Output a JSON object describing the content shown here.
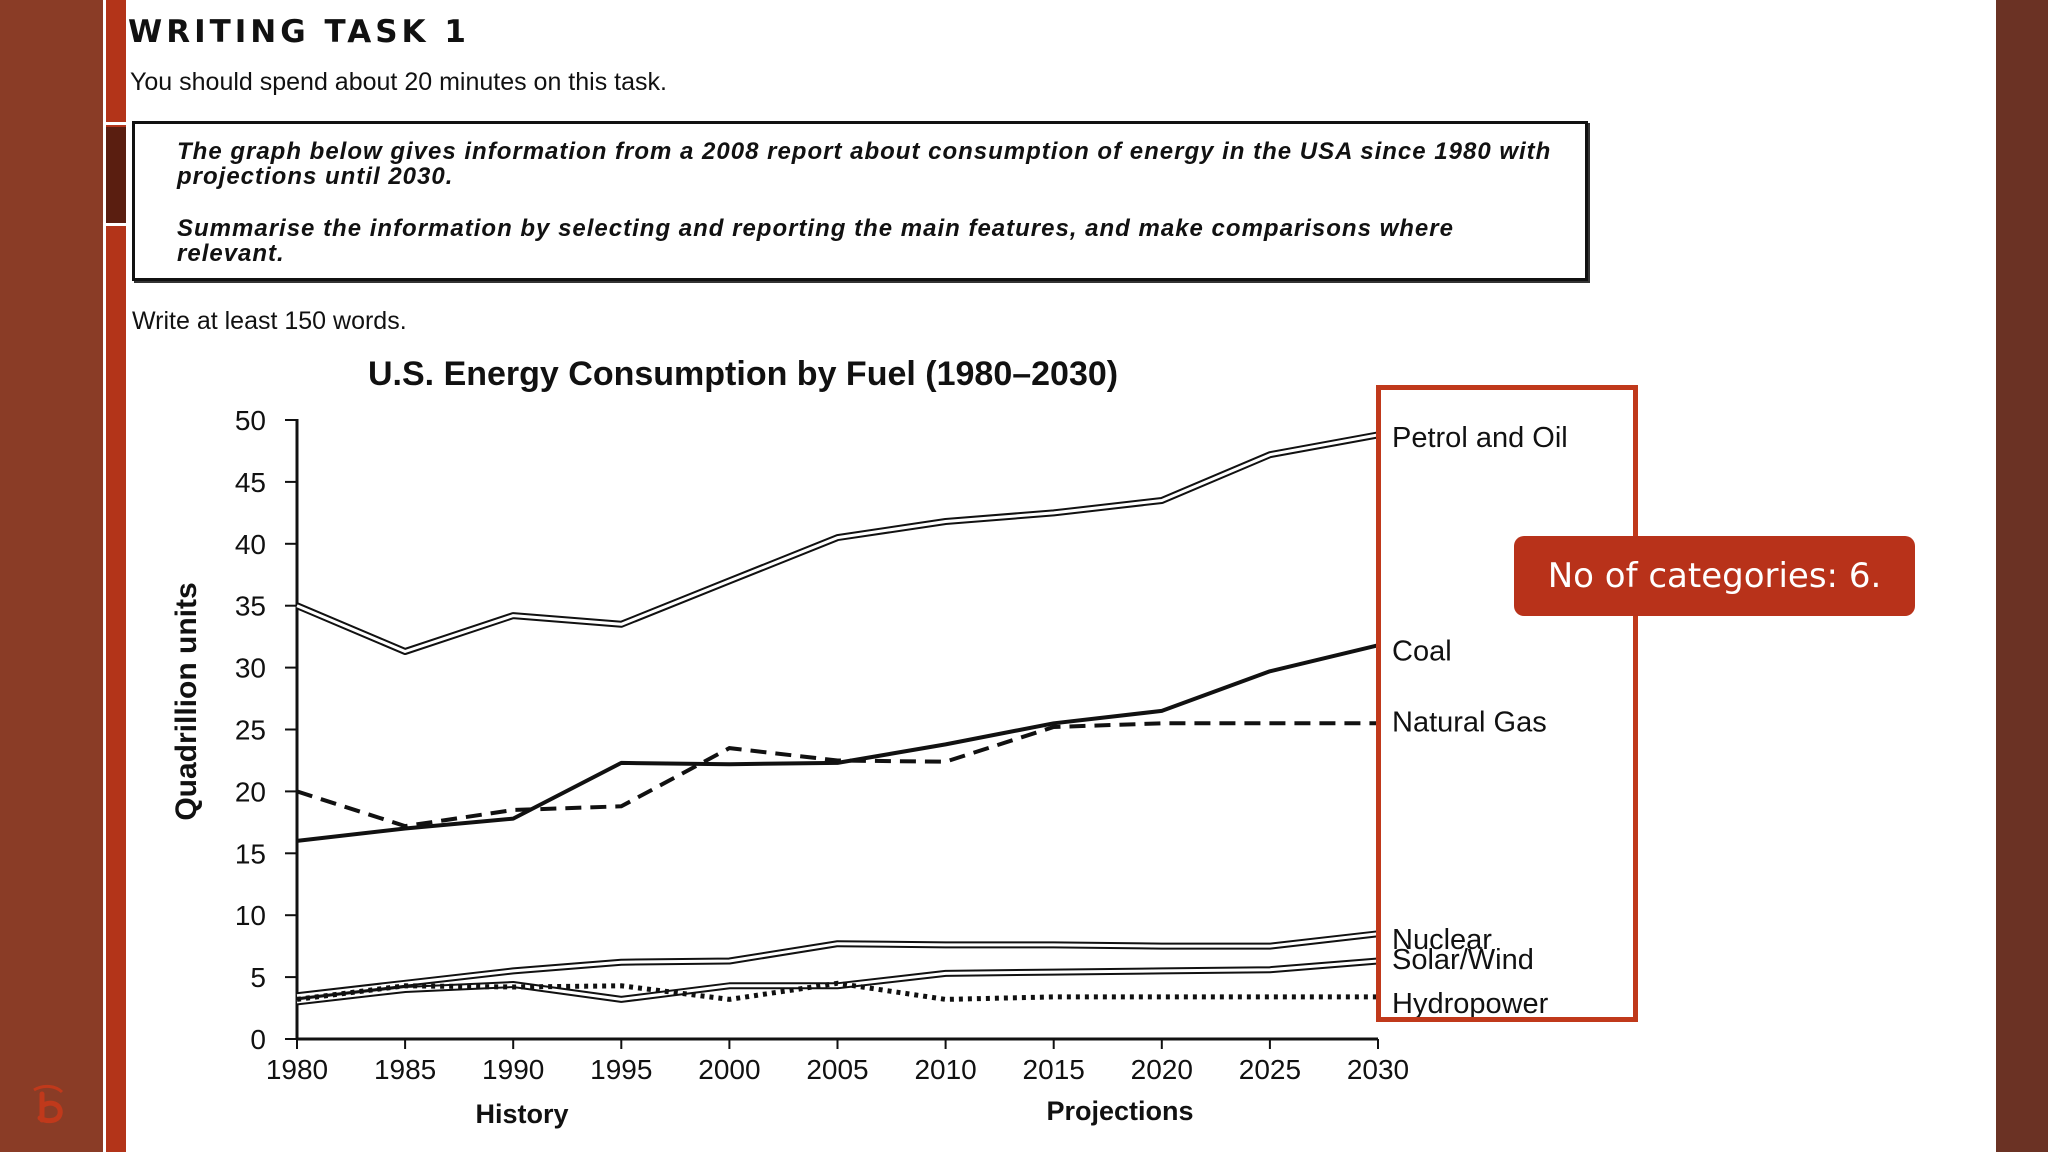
{
  "header": {
    "title": "WRITING TASK 1",
    "subtitle": "You should spend about 20 minutes on this task."
  },
  "prompt": {
    "line1": "The graph below gives information from a 2008 report about consumption of energy in the USA since 1980 with projections until 2030.",
    "line2": "Summarise the information by selecting and reporting the main features, and make comparisons where relevant."
  },
  "instruction": "Write at least 150 words.",
  "callout": "No of categories: 6.",
  "colors": {
    "sidebar": "#8a3c26",
    "stripe": "#b33419",
    "right_bar": "#6b3224",
    "highlight": "#c0391b",
    "callout_bg": "#b8321a"
  },
  "chart_data": {
    "type": "line",
    "title": "U.S. Energy Consumption by Fuel (1980–2030)",
    "xlabel": "",
    "ylabel": "Quadrillion units",
    "x_sections": [
      "History",
      "Projections"
    ],
    "x": [
      1980,
      1985,
      1990,
      1995,
      2000,
      2005,
      2010,
      2015,
      2020,
      2025,
      2030
    ],
    "xlim": [
      1980,
      2030
    ],
    "ylim": [
      0,
      50
    ],
    "yticks": [
      0,
      5,
      10,
      15,
      20,
      25,
      30,
      35,
      40,
      45,
      50
    ],
    "series": [
      {
        "name": "Petrol and Oil",
        "style": "double",
        "values": [
          35,
          31.3,
          34.2,
          33.5,
          37,
          40.5,
          41.8,
          42.5,
          43.5,
          47.2,
          48.8
        ]
      },
      {
        "name": "Coal",
        "style": "solid",
        "values": [
          16,
          17,
          17.8,
          22.3,
          22.2,
          22.3,
          23.8,
          25.5,
          26.5,
          29.7,
          31.8
        ]
      },
      {
        "name": "Natural Gas",
        "style": "dashed",
        "values": [
          20,
          17.2,
          18.5,
          18.8,
          23.5,
          22.5,
          22.4,
          25.2,
          25.5,
          25.5,
          25.5
        ]
      },
      {
        "name": "Nuclear",
        "style": "double",
        "values": [
          3.5,
          4.5,
          5.5,
          6.2,
          6.3,
          7.7,
          7.6,
          7.6,
          7.5,
          7.5,
          8.5
        ]
      },
      {
        "name": "Solar/Wind",
        "style": "double",
        "values": [
          3,
          4,
          4.4,
          3.2,
          4.3,
          4.3,
          5.3,
          5.4,
          5.5,
          5.6,
          6.3
        ]
      },
      {
        "name": "Hydropower",
        "style": "dotted",
        "values": [
          3.2,
          4.3,
          4.2,
          4.3,
          3.2,
          4.5,
          3.2,
          3.4,
          3.4,
          3.4,
          3.4
        ]
      }
    ]
  }
}
